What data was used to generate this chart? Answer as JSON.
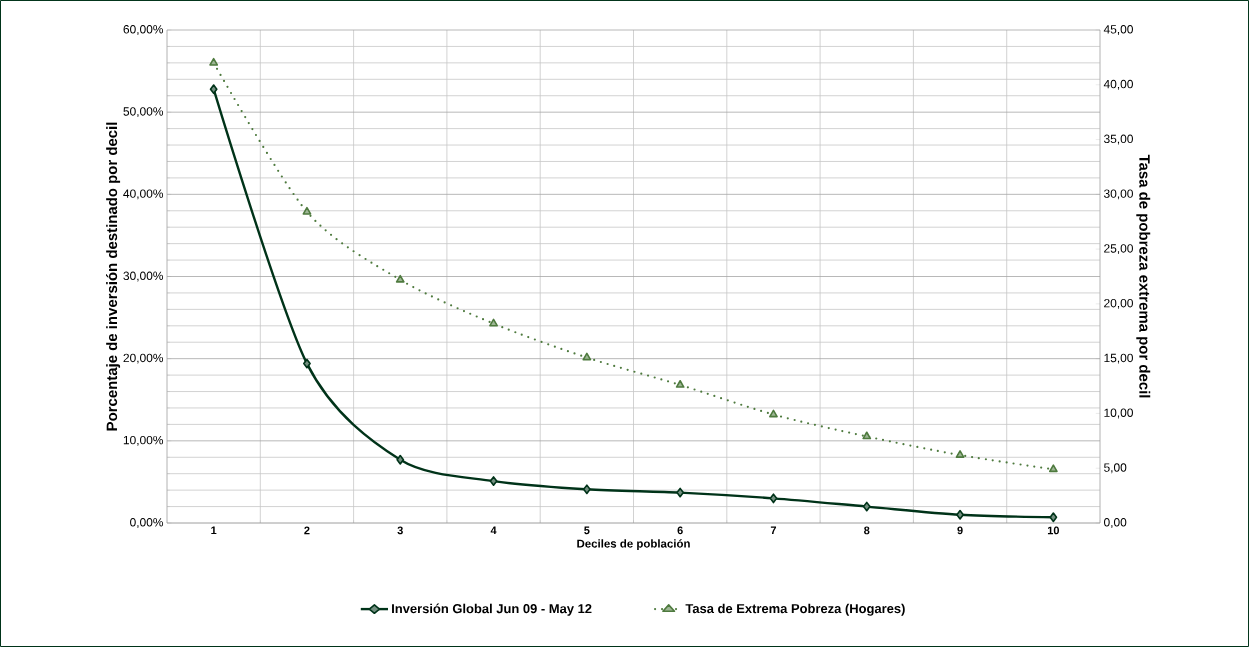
{
  "chart_data": {
    "type": "line",
    "xlabel": "Deciles de población",
    "ylabel": "Porcentaje de inversión destinado por decil",
    "y2label": "Tasa de pobreza extrema por decil",
    "categories": [
      "1",
      "2",
      "3",
      "4",
      "5",
      "6",
      "7",
      "8",
      "9",
      "10"
    ],
    "series": [
      {
        "name": "Inversión Global Jun 09 - May 12",
        "color": "#003319",
        "marker": "diamond",
        "line_style": "solid",
        "values": [
          52.8,
          19.4,
          7.7,
          5.1,
          4.1,
          3.7,
          3.0,
          2.0,
          1.0,
          0.7
        ]
      },
      {
        "name": "Tasa de Extrema Pobreza (Hogares)",
        "color": "#4e7a3e",
        "marker": "triangle",
        "line_style": "dotted",
        "axis": "y2",
        "values": [
          42.0,
          28.4,
          22.2,
          18.2,
          15.1,
          12.6,
          9.9,
          7.9,
          6.2,
          4.9
        ]
      }
    ],
    "ylim": [
      0,
      60
    ],
    "yticks": [
      {
        "value": 0,
        "label": "0,00%"
      },
      {
        "value": 10,
        "label": "10,00%"
      },
      {
        "value": 20,
        "label": "20,00%"
      },
      {
        "value": 30,
        "label": "30,00%"
      },
      {
        "value": 40,
        "label": "40,00%"
      },
      {
        "value": 50,
        "label": "50,00%"
      },
      {
        "value": 60,
        "label": "60,00%"
      }
    ],
    "y2lim": [
      0,
      45
    ],
    "y2ticks": [
      {
        "value": 0,
        "label": "0,00"
      },
      {
        "value": 5,
        "label": "5,00"
      },
      {
        "value": 10,
        "label": "10,00"
      },
      {
        "value": 15,
        "label": "15,00"
      },
      {
        "value": 20,
        "label": "20,00"
      },
      {
        "value": 25,
        "label": "25,00"
      },
      {
        "value": 30,
        "label": "30,00"
      },
      {
        "value": 35,
        "label": "35,00"
      },
      {
        "value": 40,
        "label": "40,00"
      },
      {
        "value": 45,
        "label": "45,00"
      }
    ],
    "grid": true,
    "legend": "bottom"
  }
}
